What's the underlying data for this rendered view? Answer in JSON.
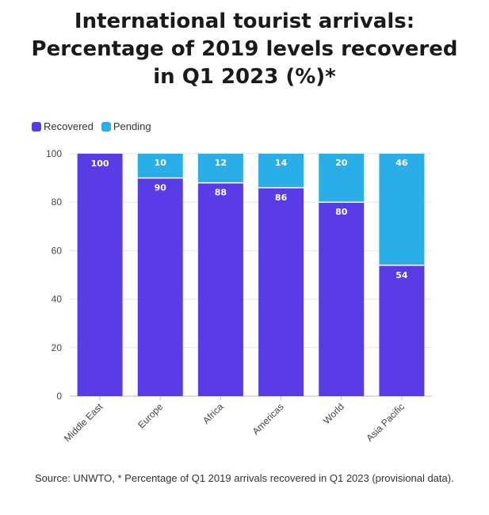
{
  "title_lines": [
    "International tourist arrivals:",
    "Percentage of 2019 levels recovered",
    "in Q1 2023 (%)*"
  ],
  "legend": [
    {
      "label": "Recovered",
      "color": "#5a3ce6"
    },
    {
      "label": "Pending",
      "color": "#2aaee8"
    }
  ],
  "source": "Source: UNWTO, * Percentage of Q1 2019 arrivals recovered in Q1 2023 (provisional data).",
  "chart_data": {
    "type": "bar",
    "stacked": true,
    "title": "International tourist arrivals: Percentage of 2019 levels recovered in Q1 2023 (%)*",
    "categories": [
      "Middle East",
      "Europe",
      "Africa",
      "Americas",
      "World",
      "Asia Pacific"
    ],
    "series": [
      {
        "name": "Recovered",
        "color": "#5a3ce6",
        "values": [
          100,
          90,
          88,
          86,
          80,
          54
        ]
      },
      {
        "name": "Pending",
        "color": "#2aaee8",
        "values": [
          0,
          10,
          12,
          14,
          20,
          46
        ]
      }
    ],
    "yticks": [
      0,
      20,
      40,
      60,
      80,
      100
    ],
    "ylim": [
      0,
      100
    ],
    "xlabel": "",
    "ylabel": "",
    "legend_position": "top-left",
    "grid": true
  }
}
